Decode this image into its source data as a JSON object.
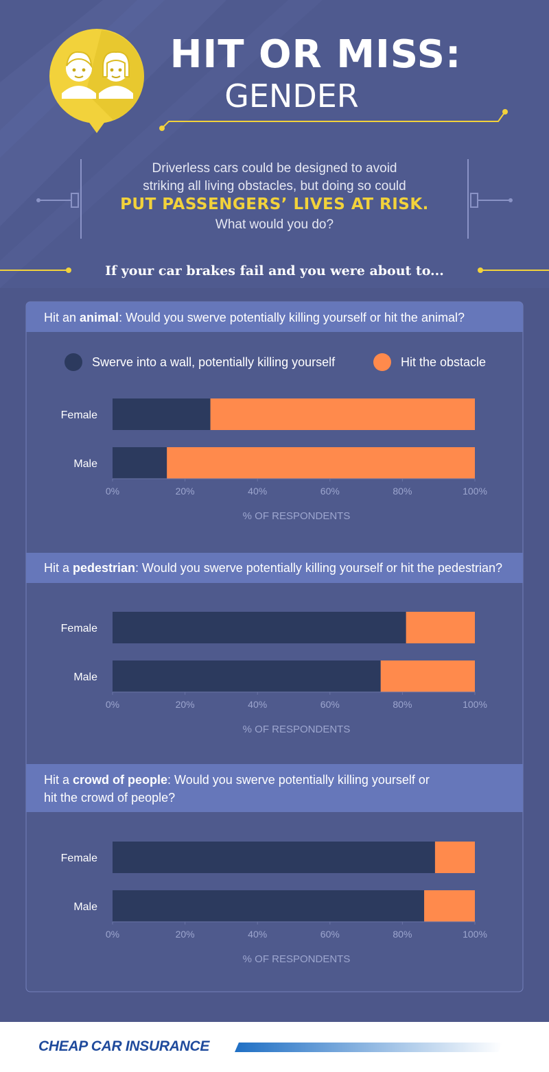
{
  "title": {
    "line1": "HIT OR MISS:",
    "line2": "GENDER"
  },
  "intro": {
    "line1": "Driverless cars could be designed to avoid",
    "line2": "striking all living obstacles, but doing so could",
    "emphasis": "PUT PASSENGERS’ LIVES AT RISK.",
    "line4": "What would you do?"
  },
  "prompt": "If your car brakes fail and you were about to...",
  "questions": [
    {
      "prefix": "Hit an ",
      "bold": "animal",
      "suffix": ": Would you swerve potentially killing yourself or hit the animal?"
    },
    {
      "prefix": "Hit a ",
      "bold": "pedestrian",
      "suffix": ": Would you swerve potentially killing yourself or hit the pedestrian?"
    },
    {
      "prefix": "Hit a ",
      "bold": "crowd of people",
      "suffix": ": Would you swerve potentially killing yourself or",
      "line2": "hit the crowd of people?"
    }
  ],
  "legend": {
    "swerve": "Swerve into a wall, potentially killing yourself",
    "hit": "Hit the obstacle"
  },
  "colors": {
    "swerve": "#2c3a5e",
    "hit": "#ff8a4c",
    "background": "#4d578a",
    "header_band": "#6677ba",
    "accent": "#f2d23b"
  },
  "chart_data": [
    {
      "type": "bar",
      "orientation": "horizontal",
      "stacked": true,
      "categories": [
        "Female",
        "Male"
      ],
      "series": [
        {
          "name": "Swerve into a wall, potentially killing yourself",
          "values": [
            27,
            15
          ]
        },
        {
          "name": "Hit the obstacle",
          "values": [
            73,
            85
          ]
        }
      ],
      "xlim": [
        0,
        100
      ],
      "xticks": [
        "0%",
        "20%",
        "40%",
        "60%",
        "80%",
        "100%"
      ],
      "xlabel": "% OF RESPONDENTS",
      "legend": "top"
    },
    {
      "type": "bar",
      "orientation": "horizontal",
      "stacked": true,
      "categories": [
        "Female",
        "Male"
      ],
      "series": [
        {
          "name": "Swerve into a wall, potentially killing yourself",
          "values": [
            81,
            74
          ]
        },
        {
          "name": "Hit the obstacle",
          "values": [
            19,
            26
          ]
        }
      ],
      "xlim": [
        0,
        100
      ],
      "xticks": [
        "0%",
        "20%",
        "40%",
        "60%",
        "80%",
        "100%"
      ],
      "xlabel": "% OF RESPONDENTS"
    },
    {
      "type": "bar",
      "orientation": "horizontal",
      "stacked": true,
      "categories": [
        "Female",
        "Male"
      ],
      "series": [
        {
          "name": "Swerve into a wall, potentially killing yourself",
          "values": [
            89,
            86
          ]
        },
        {
          "name": "Hit the obstacle",
          "values": [
            11,
            14
          ]
        }
      ],
      "xlim": [
        0,
        100
      ],
      "xticks": [
        "0%",
        "20%",
        "40%",
        "60%",
        "80%",
        "100%"
      ],
      "xlabel": "% OF RESPONDENTS"
    }
  ],
  "brand": {
    "name": "CHEAP CAR INSURANCE",
    "icon": "people-icon"
  }
}
